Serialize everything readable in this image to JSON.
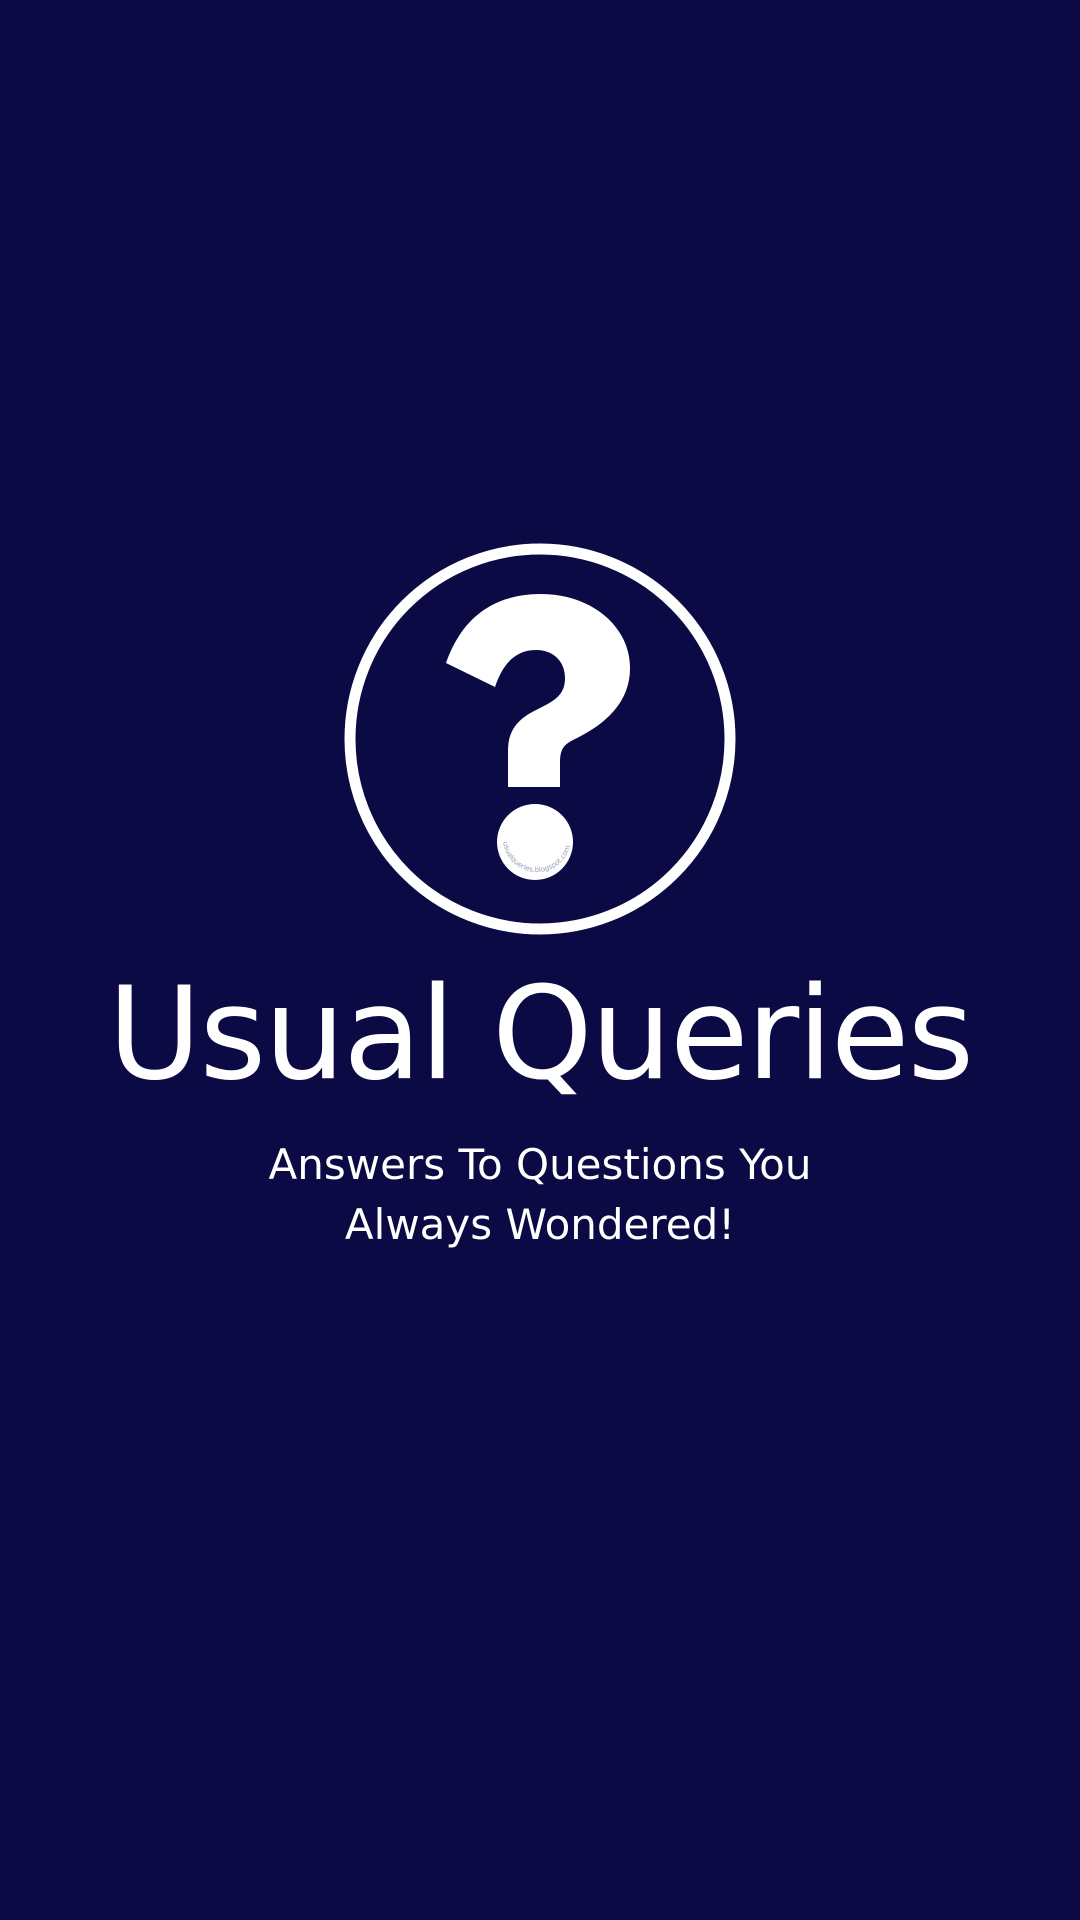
{
  "splash": {
    "background_color": "#0c0a44",
    "foreground_color": "#ffffff",
    "logo": {
      "icon": "question-mark-circle-icon",
      "watermark": "usualqueries.blogspot.com"
    },
    "title": "Usual Queries",
    "tagline_line1": "Answers To Questions You",
    "tagline_line2": "Always Wondered!"
  }
}
